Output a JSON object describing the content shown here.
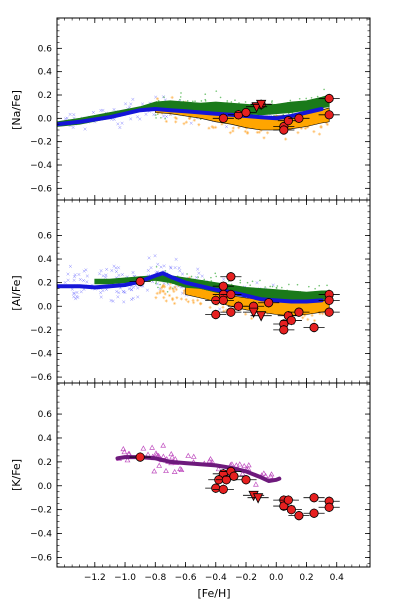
{
  "chart_data": [
    {
      "type": "scatter",
      "panel": "Na",
      "ylabel": "[Na/Fe]",
      "xlim": [
        -1.45,
        0.62
      ],
      "ylim": [
        -0.7,
        0.86
      ],
      "yticks": [
        -0.6,
        -0.4,
        -0.2,
        0.0,
        0.2,
        0.4,
        0.6
      ],
      "series": [
        {
          "role": "green-band",
          "color": "#1a7a1a",
          "x": [
            -1.45,
            -1.3,
            -1.1,
            -0.9,
            -0.8,
            -0.7,
            -0.6,
            -0.5,
            -0.4,
            -0.3,
            -0.2,
            -0.1,
            0.0,
            0.1,
            0.2,
            0.3,
            0.35
          ],
          "lower": [
            -0.07,
            -0.05,
            0.0,
            0.06,
            0.09,
            0.08,
            0.07,
            0.06,
            0.05,
            0.04,
            0.04,
            0.03,
            0.04,
            0.05,
            0.07,
            0.09,
            0.1
          ],
          "upper": [
            -0.03,
            0.0,
            0.05,
            0.1,
            0.14,
            0.15,
            0.14,
            0.13,
            0.14,
            0.13,
            0.12,
            0.11,
            0.12,
            0.14,
            0.15,
            0.18,
            0.2
          ]
        },
        {
          "role": "orange-band",
          "color": "#ffa500",
          "x": [
            -0.8,
            -0.7,
            -0.6,
            -0.5,
            -0.4,
            -0.3,
            -0.2,
            -0.1,
            0.0,
            0.1,
            0.2,
            0.3,
            0.35
          ],
          "lower": [
            0.05,
            0.04,
            0.02,
            0.0,
            -0.03,
            -0.05,
            -0.08,
            -0.1,
            -0.1,
            -0.09,
            -0.07,
            -0.04,
            -0.03
          ],
          "upper": [
            0.09,
            0.08,
            0.06,
            0.05,
            0.04,
            0.03,
            0.02,
            0.01,
            0.02,
            0.03,
            0.05,
            0.07,
            0.09
          ]
        },
        {
          "role": "blue-trend",
          "color": "#1515d8",
          "x": [
            -1.45,
            -1.3,
            -1.2,
            -1.1,
            -1.0,
            -0.9,
            -0.8,
            -0.7,
            -0.6,
            -0.5,
            -0.4,
            -0.3,
            -0.2,
            -0.1,
            0.0,
            0.1,
            0.2,
            0.3
          ],
          "y": [
            -0.05,
            -0.03,
            -0.01,
            0.01,
            0.04,
            0.07,
            0.08,
            0.07,
            0.06,
            0.05,
            0.04,
            0.03,
            0.02,
            0.01,
            0.0,
            0.02,
            0.05,
            0.08
          ]
        },
        {
          "role": "stars",
          "color": "#e62020",
          "points": [
            [
              -0.35,
              0.0
            ],
            [
              -0.25,
              0.03
            ],
            [
              -0.2,
              0.05
            ],
            [
              -0.1,
              0.12
            ],
            [
              0.05,
              -0.07
            ],
            [
              0.05,
              -0.1
            ],
            [
              0.08,
              -0.02
            ],
            [
              0.15,
              0.0
            ],
            [
              0.35,
              0.17
            ],
            [
              0.35,
              0.03
            ]
          ],
          "upper_limits": [
            [
              -0.13,
              0.1
            ],
            [
              -0.1,
              0.12
            ]
          ],
          "xerr": 0.07,
          "yerr": 0.04
        }
      ]
    },
    {
      "type": "scatter",
      "panel": "Al",
      "ylabel": "[Al/Fe]",
      "xlim": [
        -1.45,
        0.62
      ],
      "ylim": [
        -0.65,
        0.9
      ],
      "yticks": [
        -0.6,
        -0.4,
        -0.2,
        0.0,
        0.2,
        0.4,
        0.6
      ],
      "series": [
        {
          "role": "green-band",
          "color": "#1a7a1a",
          "x": [
            -1.2,
            -1.1,
            -1.0,
            -0.9,
            -0.8,
            -0.7,
            -0.6,
            -0.5,
            -0.4,
            -0.3,
            -0.2,
            -0.1,
            0.0,
            0.1,
            0.2,
            0.3,
            0.35
          ],
          "lower": [
            0.19,
            0.19,
            0.2,
            0.21,
            0.22,
            0.2,
            0.16,
            0.15,
            0.12,
            0.1,
            0.08,
            0.07,
            0.06,
            0.06,
            0.05,
            0.06,
            0.06
          ],
          "upper": [
            0.23,
            0.23,
            0.24,
            0.25,
            0.26,
            0.26,
            0.24,
            0.22,
            0.2,
            0.18,
            0.16,
            0.15,
            0.14,
            0.13,
            0.12,
            0.13,
            0.13
          ]
        },
        {
          "role": "orange-band",
          "color": "#ffa500",
          "x": [
            -0.6,
            -0.5,
            -0.4,
            -0.3,
            -0.2,
            -0.1,
            0.0,
            0.1,
            0.2,
            0.3,
            0.35
          ],
          "lower": [
            0.1,
            0.07,
            0.04,
            0.0,
            -0.03,
            -0.05,
            -0.07,
            -0.08,
            -0.07,
            -0.05,
            -0.04
          ],
          "upper": [
            0.17,
            0.15,
            0.12,
            0.09,
            0.07,
            0.06,
            0.05,
            0.04,
            0.04,
            0.05,
            0.06
          ]
        },
        {
          "role": "blue-trend",
          "color": "#1515d8",
          "x": [
            -1.45,
            -1.3,
            -1.2,
            -1.1,
            -1.0,
            -0.9,
            -0.8,
            -0.75,
            -0.7,
            -0.6,
            -0.5,
            -0.4,
            -0.3,
            -0.2,
            -0.1,
            0.0,
            0.1,
            0.2,
            0.3
          ],
          "y": [
            0.17,
            0.17,
            0.16,
            0.17,
            0.18,
            0.21,
            0.26,
            0.28,
            0.25,
            0.2,
            0.17,
            0.14,
            0.12,
            0.09,
            0.06,
            0.05,
            0.04,
            0.04,
            0.05
          ]
        },
        {
          "role": "stars",
          "color": "#e62020",
          "points": [
            [
              -0.9,
              0.21
            ],
            [
              -0.35,
              0.17
            ],
            [
              -0.3,
              0.25
            ],
            [
              -0.35,
              0.1
            ],
            [
              -0.3,
              0.1
            ],
            [
              -0.4,
              0.05
            ],
            [
              -0.35,
              0.05
            ],
            [
              -0.3,
              -0.05
            ],
            [
              -0.4,
              -0.07
            ],
            [
              -0.25,
              0.0
            ],
            [
              -0.15,
              0.0
            ],
            [
              -0.05,
              0.03
            ],
            [
              0.05,
              -0.15
            ],
            [
              0.05,
              -0.2
            ],
            [
              0.08,
              -0.08
            ],
            [
              0.1,
              -0.12
            ],
            [
              0.15,
              -0.05
            ],
            [
              0.25,
              -0.18
            ],
            [
              0.35,
              0.1
            ],
            [
              0.35,
              0.05
            ],
            [
              0.35,
              -0.05
            ]
          ],
          "upper_limits": [
            [
              -0.15,
              -0.05
            ],
            [
              -0.1,
              -0.08
            ]
          ],
          "xerr": 0.07,
          "yerr": 0.04
        }
      ]
    },
    {
      "type": "scatter",
      "panel": "K",
      "ylabel": "[K/Fe]",
      "xlabel": "[Fe/H]",
      "xlim": [
        -1.45,
        0.62
      ],
      "ylim": [
        -0.68,
        0.86
      ],
      "yticks": [
        -0.6,
        -0.4,
        -0.2,
        0.0,
        0.2,
        0.4,
        0.6
      ],
      "xticks": [
        -1.2,
        -1.0,
        -0.8,
        -0.6,
        -0.4,
        -0.2,
        0.0,
        0.2,
        0.4
      ],
      "series": [
        {
          "role": "purple-trend",
          "color": "#6e1a7c",
          "x": [
            -1.05,
            -1.0,
            -0.9,
            -0.8,
            -0.7,
            -0.6,
            -0.5,
            -0.4,
            -0.3,
            -0.2,
            -0.1,
            -0.05,
            0.0,
            0.02
          ],
          "y": [
            0.23,
            0.24,
            0.24,
            0.23,
            0.2,
            0.19,
            0.18,
            0.17,
            0.15,
            0.12,
            0.07,
            0.04,
            0.05,
            0.06
          ]
        },
        {
          "role": "stars",
          "color": "#e62020",
          "points": [
            [
              -0.9,
              0.24
            ],
            [
              -0.35,
              0.1
            ],
            [
              -0.3,
              0.12
            ],
            [
              -0.38,
              0.05
            ],
            [
              -0.33,
              0.05
            ],
            [
              -0.28,
              0.08
            ],
            [
              -0.4,
              -0.02
            ],
            [
              -0.35,
              -0.03
            ],
            [
              -0.2,
              0.05
            ],
            [
              0.05,
              -0.12
            ],
            [
              0.05,
              -0.17
            ],
            [
              0.08,
              -0.12
            ],
            [
              0.1,
              -0.2
            ],
            [
              0.15,
              -0.25
            ],
            [
              0.25,
              -0.1
            ],
            [
              0.25,
              -0.23
            ],
            [
              0.35,
              -0.13
            ],
            [
              0.35,
              -0.18
            ]
          ],
          "upper_limits": [
            [
              -0.15,
              -0.08
            ],
            [
              -0.12,
              -0.1
            ]
          ],
          "xerr": 0.07,
          "yerr": 0.04
        }
      ]
    }
  ],
  "colors": {
    "green": "#1a7a1a",
    "orange": "#ffa500",
    "blue": "#1515d8",
    "purple": "#6e1a7c",
    "star_red": "#e62020",
    "triangle_pink": "#c050c0"
  },
  "panels": {
    "na": {
      "ylabel": "[Na/Fe]"
    },
    "al": {
      "ylabel": "[Al/Fe]"
    },
    "k": {
      "ylabel": "[K/Fe]",
      "xlabel": "[Fe/H]"
    }
  },
  "tick_labels": {
    "y": [
      "−0.6",
      "−0.4",
      "−0.2",
      "0.0",
      "0.2",
      "0.4",
      "0.6"
    ],
    "x": [
      "−1.2",
      "−1.0",
      "−0.8",
      "−0.6",
      "−0.4",
      "−0.2",
      "0.0",
      "0.2",
      "0.4"
    ]
  }
}
